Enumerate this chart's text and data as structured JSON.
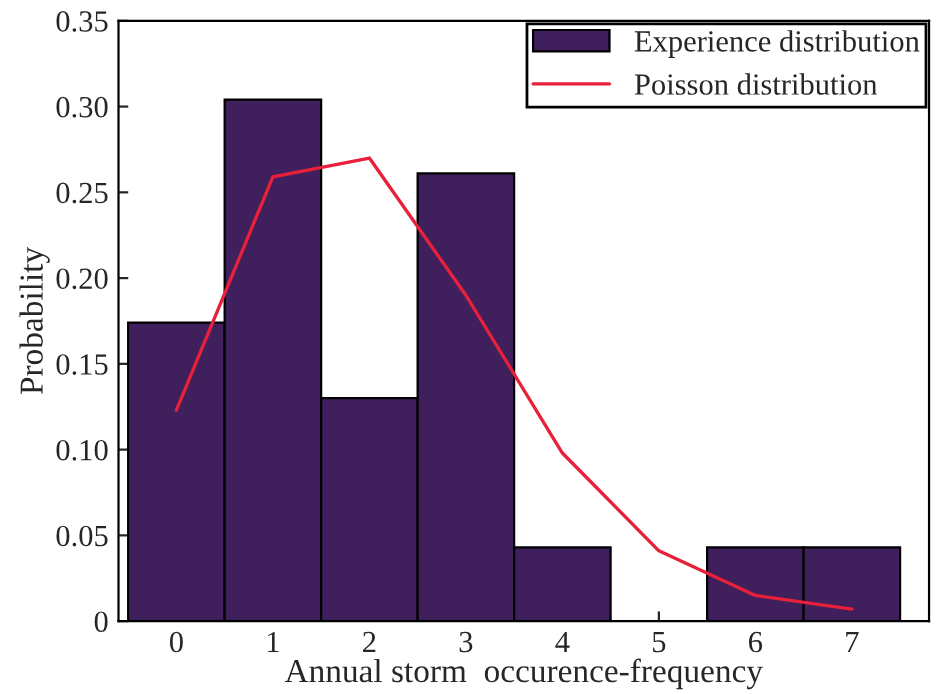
{
  "chart_data": {
    "type": "bar",
    "xlabel": "Annual storm  occurence-frequency",
    "ylabel": "Probability",
    "categories": [
      "0",
      "1",
      "2",
      "3",
      "4",
      "5",
      "6",
      "7"
    ],
    "series": [
      {
        "name": "Experience distribution",
        "color": "#3f1f5c",
        "values": [
          0.174,
          0.304,
          0.13,
          0.261,
          0.043,
          0,
          0.043,
          0.043
        ]
      },
      {
        "name": "Poisson distribution",
        "type": "line",
        "color": "#e8203a",
        "values": [
          0.123,
          0.259,
          0.27,
          0.19,
          0.098,
          0.041,
          0.015,
          0.007
        ]
      }
    ],
    "ylim": [
      0,
      0.35
    ],
    "yticks": [
      0,
      {
        "value": 0.05,
        "label": "0.05"
      },
      {
        "value": 0.1,
        "label": "0.10"
      },
      {
        "value": 0.15,
        "label": "0.15"
      },
      {
        "value": 0.2,
        "label": "0.20"
      },
      {
        "value": 0.25,
        "label": "0.25"
      },
      {
        "value": 0.3,
        "label": "0.30"
      },
      {
        "value": 0.35,
        "label": "0.35"
      }
    ],
    "legend": "top right",
    "grid": false
  }
}
